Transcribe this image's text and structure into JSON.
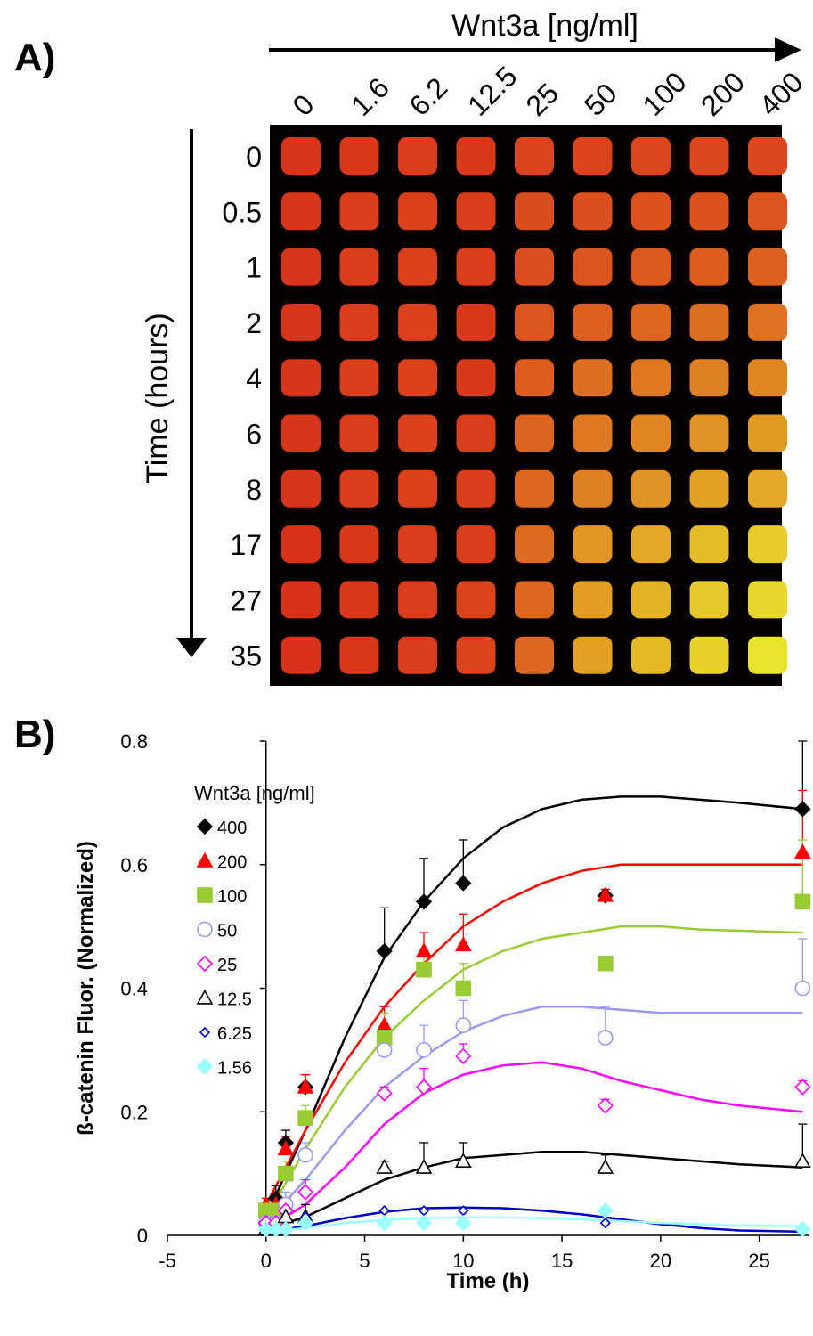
{
  "panel_a": {
    "label": "A)",
    "column_axis_title": "Wnt3a [ng/ml]",
    "row_axis_title": "Time (hours)",
    "columns": [
      "0",
      "1.6",
      "6.2",
      "12.5",
      "25",
      "50",
      "100",
      "200",
      "400"
    ],
    "rows": [
      "0",
      "0.5",
      "1",
      "2",
      "4",
      "6",
      "8",
      "17",
      "27",
      "35"
    ],
    "colors": {
      "background": "#050000",
      "low": "#d8321a",
      "high": "#e8e42c"
    },
    "intensity_matrix": [
      [
        0.02,
        0.04,
        0.06,
        0.04,
        0.1,
        0.1,
        0.12,
        0.12,
        0.12
      ],
      [
        0.02,
        0.06,
        0.08,
        0.06,
        0.14,
        0.16,
        0.18,
        0.18,
        0.2
      ],
      [
        0.02,
        0.06,
        0.08,
        0.06,
        0.16,
        0.2,
        0.22,
        0.24,
        0.26
      ],
      [
        0.02,
        0.06,
        0.08,
        0.04,
        0.2,
        0.26,
        0.3,
        0.34,
        0.36
      ],
      [
        0.02,
        0.06,
        0.08,
        0.04,
        0.24,
        0.34,
        0.4,
        0.44,
        0.48
      ],
      [
        0.02,
        0.06,
        0.08,
        0.06,
        0.28,
        0.4,
        0.48,
        0.54,
        0.58
      ],
      [
        0.02,
        0.06,
        0.08,
        0.06,
        0.3,
        0.44,
        0.54,
        0.62,
        0.66
      ],
      [
        0.0,
        0.04,
        0.06,
        0.06,
        0.32,
        0.56,
        0.66,
        0.78,
        0.86
      ],
      [
        0.0,
        0.04,
        0.06,
        0.1,
        0.3,
        0.6,
        0.72,
        0.84,
        0.92
      ],
      [
        0.0,
        0.04,
        0.06,
        0.1,
        0.3,
        0.62,
        0.76,
        0.9,
        1.0
      ]
    ]
  },
  "chart_data": {
    "type": "scatter",
    "label": "B)",
    "title": "",
    "xlabel": "Time (h)",
    "ylabel": "ß-catenin Fluor. (Normalized)",
    "xlim": [
      -5,
      27.5
    ],
    "ylim": [
      0,
      0.8
    ],
    "xticks": [
      "-5",
      "0",
      "5",
      "10",
      "15",
      "20",
      "25"
    ],
    "xtick_values": [
      -5,
      0,
      5,
      10,
      15,
      20,
      25
    ],
    "yticks": [
      "0",
      "0.2",
      "0.4",
      "0.6",
      "0.8"
    ],
    "ytick_values": [
      0,
      0.2,
      0.4,
      0.6,
      0.8
    ],
    "legend_title": "Wnt3a [ng/ml]",
    "legend_position": "top-left",
    "grid": false,
    "series": [
      {
        "name": "400",
        "marker": "diamond",
        "fill": "#000000",
        "stroke": "#000000",
        "line": "#000000",
        "points": [
          [
            0,
            0.03
          ],
          [
            0.5,
            0.06
          ],
          [
            1,
            0.15
          ],
          [
            2,
            0.24
          ],
          [
            6,
            0.46
          ],
          [
            8,
            0.54
          ],
          [
            10,
            0.57
          ],
          [
            17.2,
            0.55
          ],
          [
            27.2,
            0.69
          ]
        ],
        "errors": [
          0.01,
          0.02,
          0.02,
          0.02,
          0.07,
          0.07,
          0.07,
          0.01,
          0.11
        ],
        "curve": [
          [
            0,
            0.03
          ],
          [
            2,
            0.17
          ],
          [
            4,
            0.32
          ],
          [
            6,
            0.45
          ],
          [
            8,
            0.54
          ],
          [
            10,
            0.61
          ],
          [
            12,
            0.66
          ],
          [
            14,
            0.69
          ],
          [
            16,
            0.705
          ],
          [
            18,
            0.71
          ],
          [
            20,
            0.71
          ],
          [
            22,
            0.705
          ],
          [
            24,
            0.7
          ],
          [
            27.2,
            0.69
          ]
        ]
      },
      {
        "name": "200",
        "marker": "triangle",
        "fill": "#ff0000",
        "stroke": "#ff0000",
        "line": "#ff0000",
        "points": [
          [
            0,
            0.05
          ],
          [
            0.5,
            0.05
          ],
          [
            1,
            0.14
          ],
          [
            2,
            0.24
          ],
          [
            6,
            0.34
          ],
          [
            8,
            0.46
          ],
          [
            10,
            0.47
          ],
          [
            17.2,
            0.55
          ],
          [
            27.2,
            0.62
          ]
        ],
        "errors": [
          0.01,
          0.02,
          0.02,
          0.02,
          0.03,
          0.03,
          0.05,
          0.01,
          0.1
        ],
        "curve": [
          [
            0,
            0.05
          ],
          [
            2,
            0.17
          ],
          [
            4,
            0.28
          ],
          [
            6,
            0.37
          ],
          [
            8,
            0.44
          ],
          [
            10,
            0.5
          ],
          [
            12,
            0.54
          ],
          [
            14,
            0.57
          ],
          [
            16,
            0.59
          ],
          [
            18,
            0.6
          ],
          [
            20,
            0.6
          ],
          [
            22,
            0.6
          ],
          [
            27.2,
            0.6
          ]
        ]
      },
      {
        "name": "100",
        "marker": "square",
        "fill": "#99cc33",
        "stroke": "#99cc33",
        "line": "#99cc33",
        "points": [
          [
            0,
            0.04
          ],
          [
            0.5,
            0.04
          ],
          [
            1,
            0.1
          ],
          [
            2,
            0.19
          ],
          [
            6,
            0.32
          ],
          [
            8,
            0.43
          ],
          [
            10,
            0.4
          ],
          [
            17.2,
            0.44
          ],
          [
            27.2,
            0.54
          ]
        ],
        "errors": [
          0.01,
          0.02,
          0.02,
          0.02,
          0.04,
          0.03,
          0.04,
          0.01,
          0.1
        ],
        "curve": [
          [
            0,
            0.03
          ],
          [
            2,
            0.14
          ],
          [
            4,
            0.24
          ],
          [
            6,
            0.32
          ],
          [
            8,
            0.38
          ],
          [
            10,
            0.43
          ],
          [
            12,
            0.46
          ],
          [
            14,
            0.48
          ],
          [
            16,
            0.49
          ],
          [
            18,
            0.5
          ],
          [
            20,
            0.5
          ],
          [
            22,
            0.495
          ],
          [
            27.2,
            0.49
          ]
        ]
      },
      {
        "name": "50",
        "marker": "circle",
        "fill": "none",
        "stroke": "#9999ee",
        "line": "#9999ee",
        "points": [
          [
            0,
            0.02
          ],
          [
            0.5,
            0.02
          ],
          [
            1,
            0.05
          ],
          [
            2,
            0.13
          ],
          [
            6,
            0.3
          ],
          [
            8,
            0.3
          ],
          [
            10,
            0.34
          ],
          [
            17.2,
            0.32
          ],
          [
            27.2,
            0.4
          ]
        ],
        "errors": [
          0.01,
          0.01,
          0.02,
          0.02,
          0.03,
          0.04,
          0.04,
          0.05,
          0.08
        ],
        "curve": [
          [
            0,
            0.02
          ],
          [
            2,
            0.09
          ],
          [
            4,
            0.17
          ],
          [
            6,
            0.24
          ],
          [
            8,
            0.29
          ],
          [
            10,
            0.33
          ],
          [
            12,
            0.355
          ],
          [
            14,
            0.37
          ],
          [
            16,
            0.37
          ],
          [
            18,
            0.365
          ],
          [
            20,
            0.36
          ],
          [
            22,
            0.36
          ],
          [
            27.2,
            0.36
          ]
        ]
      },
      {
        "name": "25",
        "marker": "diamond-open",
        "fill": "none",
        "stroke": "#ff00ff",
        "line": "#ff00ff",
        "points": [
          [
            0,
            0.02
          ],
          [
            0.5,
            0.02
          ],
          [
            1,
            0.04
          ],
          [
            2,
            0.07
          ],
          [
            6,
            0.23
          ],
          [
            8,
            0.24
          ],
          [
            10,
            0.29
          ],
          [
            17.2,
            0.21
          ],
          [
            27.2,
            0.24
          ]
        ],
        "errors": [
          0.01,
          0.01,
          0.02,
          0.02,
          0.01,
          0.03,
          0.02,
          0.01,
          0.01
        ],
        "curve": [
          [
            0,
            0.01
          ],
          [
            2,
            0.05
          ],
          [
            4,
            0.11
          ],
          [
            6,
            0.18
          ],
          [
            8,
            0.23
          ],
          [
            10,
            0.26
          ],
          [
            12,
            0.275
          ],
          [
            14,
            0.28
          ],
          [
            16,
            0.27
          ],
          [
            18,
            0.25
          ],
          [
            20,
            0.235
          ],
          [
            22,
            0.22
          ],
          [
            24,
            0.21
          ],
          [
            27.2,
            0.2
          ]
        ]
      },
      {
        "name": "12.5",
        "marker": "triangle-open",
        "fill": "none",
        "stroke": "#000000",
        "line": "#000000",
        "points": [
          [
            0,
            0.01
          ],
          [
            0.5,
            0.01
          ],
          [
            1,
            0.03
          ],
          [
            2,
            0.03
          ],
          [
            6,
            0.11
          ],
          [
            8,
            0.11
          ],
          [
            10,
            0.12
          ],
          [
            17.2,
            0.11
          ],
          [
            27.2,
            0.12
          ]
        ],
        "errors": [
          0.01,
          0.01,
          0.01,
          0.02,
          0.01,
          0.04,
          0.03,
          0.02,
          0.06
        ],
        "curve": [
          [
            0,
            0.01
          ],
          [
            2,
            0.03
          ],
          [
            4,
            0.06
          ],
          [
            6,
            0.09
          ],
          [
            8,
            0.11
          ],
          [
            10,
            0.125
          ],
          [
            12,
            0.13
          ],
          [
            14,
            0.135
          ],
          [
            16,
            0.135
          ],
          [
            18,
            0.13
          ],
          [
            20,
            0.125
          ],
          [
            22,
            0.12
          ],
          [
            24,
            0.115
          ],
          [
            27.2,
            0.11
          ]
        ]
      },
      {
        "name": "6.25",
        "marker": "diamond-small",
        "fill": "none",
        "stroke": "#0000cc",
        "line": "#0000cc",
        "points": [
          [
            0,
            0.01
          ],
          [
            0.5,
            0.01
          ],
          [
            1,
            0.01
          ],
          [
            2,
            0.03
          ],
          [
            6,
            0.04
          ],
          [
            8,
            0.04
          ],
          [
            10,
            0.04
          ],
          [
            17.2,
            0.02
          ],
          [
            27.2,
            0.01
          ]
        ],
        "errors": [
          0.0,
          0.0,
          0.0,
          0.0,
          0.0,
          0.0,
          0.0,
          0.0,
          0.0
        ],
        "curve": [
          [
            0,
            0.005
          ],
          [
            2,
            0.015
          ],
          [
            4,
            0.028
          ],
          [
            6,
            0.038
          ],
          [
            8,
            0.044
          ],
          [
            10,
            0.045
          ],
          [
            12,
            0.044
          ],
          [
            14,
            0.04
          ],
          [
            16,
            0.034
          ],
          [
            18,
            0.026
          ],
          [
            20,
            0.018
          ],
          [
            22,
            0.012
          ],
          [
            24,
            0.008
          ],
          [
            27.2,
            0.006
          ]
        ]
      },
      {
        "name": "1.56",
        "marker": "diamond",
        "fill": "#99ffff",
        "stroke": "#99ffff",
        "line": "#99ffff",
        "points": [
          [
            0,
            0.01
          ],
          [
            0.5,
            0.01
          ],
          [
            1,
            0.01
          ],
          [
            2,
            0.02
          ],
          [
            6,
            0.02
          ],
          [
            8,
            0.02
          ],
          [
            10,
            0.02
          ],
          [
            17.2,
            0.04
          ],
          [
            27.2,
            0.01
          ]
        ],
        "errors": [
          0.0,
          0.0,
          0.0,
          0.0,
          0.0,
          0.0,
          0.0,
          0.0,
          0.0
        ],
        "curve": [
          [
            0,
            0.005
          ],
          [
            2,
            0.012
          ],
          [
            4,
            0.02
          ],
          [
            6,
            0.025
          ],
          [
            8,
            0.028
          ],
          [
            10,
            0.029
          ],
          [
            12,
            0.029
          ],
          [
            14,
            0.028
          ],
          [
            16,
            0.026
          ],
          [
            18,
            0.023
          ],
          [
            20,
            0.02
          ],
          [
            22,
            0.018
          ],
          [
            24,
            0.016
          ],
          [
            27.2,
            0.015
          ]
        ]
      }
    ]
  }
}
